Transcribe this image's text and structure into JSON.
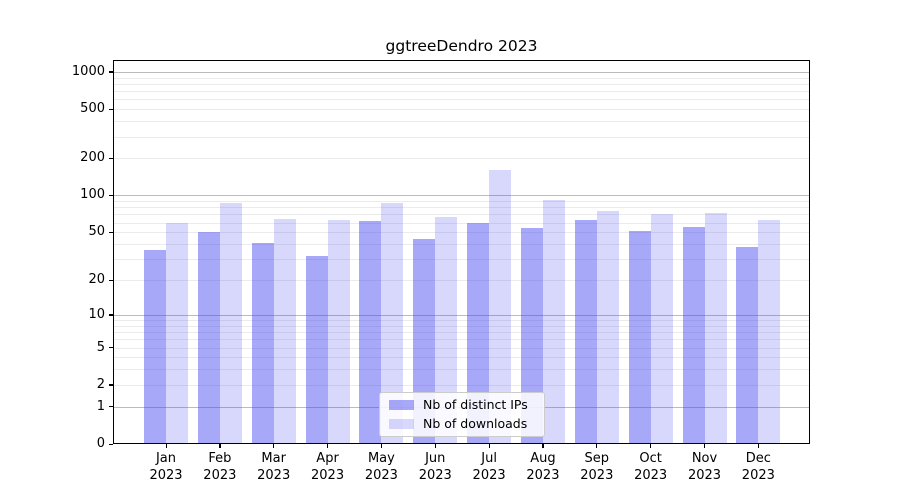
{
  "chart_data": {
    "type": "bar",
    "title": "ggtreeDendro 2023",
    "x_categories": [
      "Jan",
      "Feb",
      "Mar",
      "Apr",
      "May",
      "Jun",
      "Jul",
      "Aug",
      "Sep",
      "Oct",
      "Nov",
      "Dec"
    ],
    "x_year": "2023",
    "series": [
      {
        "name": "Nb of distinct IPs",
        "base_color": "#4646f0",
        "alpha": 0.47,
        "rendered_color": "#a8a8f8",
        "values": [
          35,
          49,
          40,
          31,
          61,
          43,
          59,
          53,
          62,
          50,
          54,
          37
        ]
      },
      {
        "name": "Nb of downloads",
        "base_color": "#4646f0",
        "alpha": 0.21,
        "rendered_color": "#d8d8f8",
        "values": [
          59,
          86,
          63,
          62,
          85,
          66,
          158,
          91,
          74,
          69,
          71,
          62
        ]
      }
    ],
    "y_axis": {
      "scale": "log1p",
      "tick_labels": [
        "0",
        "1",
        "2",
        "5",
        "10",
        "20",
        "50",
        "100",
        "200",
        "500",
        "1000"
      ],
      "tick_values": [
        0,
        1,
        2,
        5,
        10,
        20,
        50,
        100,
        200,
        500,
        1000
      ],
      "major_gridlines": [
        1,
        10,
        100,
        1000
      ],
      "range": [
        0,
        1250
      ]
    },
    "legend": {
      "position": "inside-bottom-center",
      "entries": [
        "Nb of distinct IPs",
        "Nb of downloads"
      ]
    },
    "grid": true
  },
  "colors": {
    "background": "#ffffff",
    "spine": "#000000",
    "major_grid": "#bbbbbb",
    "minor_grid": "#ebebeb",
    "legend_border": "#cccccc"
  }
}
